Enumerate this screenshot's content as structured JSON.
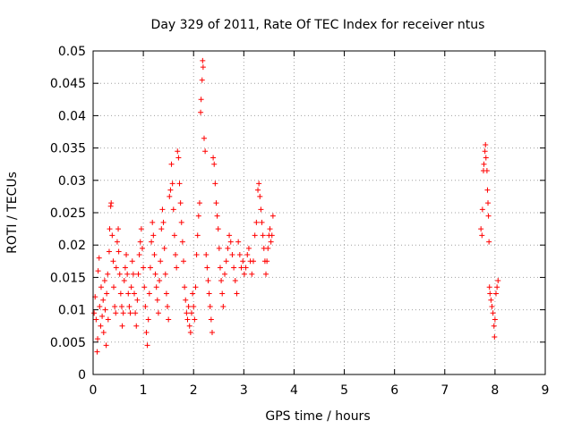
{
  "chart_data": {
    "type": "scatter",
    "title": "Day 329 of 2011, Rate Of TEC Index for receiver ntus",
    "xlabel": "GPS time / hours",
    "ylabel": "ROTI / TECUs",
    "xlim": [
      0,
      9
    ],
    "ylim": [
      0,
      0.05
    ],
    "x_ticks": [
      0,
      1,
      2,
      3,
      4,
      5,
      6,
      7,
      8,
      9
    ],
    "y_ticks": [
      0,
      0.005,
      0.01,
      0.015,
      0.02,
      0.025,
      0.03,
      0.035,
      0.04,
      0.045,
      0.05
    ],
    "x_tick_labels": [
      "0",
      "1",
      "2",
      "3",
      "4",
      "5",
      "6",
      "7",
      "8",
      "9"
    ],
    "y_tick_labels": [
      "0",
      "0.005",
      "0.01",
      "0.015",
      "0.02",
      "0.025",
      "0.03",
      "0.035",
      "0.04",
      "0.045",
      "0.05"
    ],
    "grid": true,
    "legend": "none",
    "marker": "plus",
    "color": "#ff0000",
    "series": [
      {
        "points": [
          [
            0.02,
            0.0095
          ],
          [
            0.04,
            0.012
          ],
          [
            0.06,
            0.0085
          ],
          [
            0.08,
            0.0035
          ],
          [
            0.09,
            0.0055
          ],
          [
            0.1,
            0.016
          ],
          [
            0.12,
            0.018
          ],
          [
            0.13,
            0.0105
          ],
          [
            0.15,
            0.0075
          ],
          [
            0.16,
            0.0135
          ],
          [
            0.18,
            0.009
          ],
          [
            0.2,
            0.0115
          ],
          [
            0.21,
            0.0065
          ],
          [
            0.23,
            0.0145
          ],
          [
            0.24,
            0.01
          ],
          [
            0.26,
            0.0045
          ],
          [
            0.27,
            0.0125
          ],
          [
            0.29,
            0.0155
          ],
          [
            0.3,
            0.0085
          ],
          [
            0.32,
            0.019
          ],
          [
            0.33,
            0.0225
          ],
          [
            0.35,
            0.026
          ],
          [
            0.36,
            0.0265
          ],
          [
            0.38,
            0.0215
          ],
          [
            0.4,
            0.0175
          ],
          [
            0.41,
            0.0135
          ],
          [
            0.43,
            0.0105
          ],
          [
            0.45,
            0.0095
          ],
          [
            0.46,
            0.0165
          ],
          [
            0.48,
            0.0205
          ],
          [
            0.5,
            0.0225
          ],
          [
            0.51,
            0.019
          ],
          [
            0.53,
            0.0155
          ],
          [
            0.55,
            0.0125
          ],
          [
            0.57,
            0.0105
          ],
          [
            0.58,
            0.0075
          ],
          [
            0.6,
            0.0095
          ],
          [
            0.62,
            0.0145
          ],
          [
            0.64,
            0.0165
          ],
          [
            0.66,
            0.0185
          ],
          [
            0.68,
            0.0155
          ],
          [
            0.7,
            0.0125
          ],
          [
            0.72,
            0.0105
          ],
          [
            0.74,
            0.0095
          ],
          [
            0.76,
            0.0135
          ],
          [
            0.78,
            0.0175
          ],
          [
            0.8,
            0.0155
          ],
          [
            0.82,
            0.0125
          ],
          [
            0.84,
            0.0095
          ],
          [
            0.86,
            0.0075
          ],
          [
            0.88,
            0.0115
          ],
          [
            0.9,
            0.0155
          ],
          [
            0.92,
            0.0185
          ],
          [
            0.94,
            0.0205
          ],
          [
            0.96,
            0.0225
          ],
          [
            0.98,
            0.0195
          ],
          [
            1.0,
            0.0165
          ],
          [
            1.02,
            0.0135
          ],
          [
            1.04,
            0.0105
          ],
          [
            1.06,
            0.0065
          ],
          [
            1.08,
            0.0045
          ],
          [
            1.1,
            0.0085
          ],
          [
            1.12,
            0.0125
          ],
          [
            1.14,
            0.0165
          ],
          [
            1.16,
            0.0205
          ],
          [
            1.18,
            0.0235
          ],
          [
            1.2,
            0.0215
          ],
          [
            1.22,
            0.0185
          ],
          [
            1.24,
            0.0155
          ],
          [
            1.26,
            0.0135
          ],
          [
            1.28,
            0.0115
          ],
          [
            1.3,
            0.0095
          ],
          [
            1.32,
            0.0145
          ],
          [
            1.34,
            0.0175
          ],
          [
            1.36,
            0.0225
          ],
          [
            1.38,
            0.0255
          ],
          [
            1.4,
            0.0235
          ],
          [
            1.42,
            0.0195
          ],
          [
            1.44,
            0.0155
          ],
          [
            1.46,
            0.0125
          ],
          [
            1.48,
            0.0105
          ],
          [
            1.5,
            0.0085
          ],
          [
            1.52,
            0.0275
          ],
          [
            1.54,
            0.0285
          ],
          [
            1.56,
            0.0325
          ],
          [
            1.58,
            0.0295
          ],
          [
            1.6,
            0.0255
          ],
          [
            1.62,
            0.0215
          ],
          [
            1.64,
            0.0185
          ],
          [
            1.66,
            0.0165
          ],
          [
            1.68,
            0.0345
          ],
          [
            1.7,
            0.0335
          ],
          [
            1.72,
            0.0295
          ],
          [
            1.74,
            0.0265
          ],
          [
            1.76,
            0.0235
          ],
          [
            1.78,
            0.0205
          ],
          [
            1.8,
            0.0175
          ],
          [
            1.82,
            0.0135
          ],
          [
            1.84,
            0.0115
          ],
          [
            1.86,
            0.0095
          ],
          [
            1.88,
            0.0085
          ],
          [
            1.9,
            0.0105
          ],
          [
            1.92,
            0.0075
          ],
          [
            1.94,
            0.0065
          ],
          [
            1.96,
            0.0095
          ],
          [
            1.98,
            0.0125
          ],
          [
            2.0,
            0.0105
          ],
          [
            2.02,
            0.0085
          ],
          [
            2.04,
            0.0135
          ],
          [
            2.06,
            0.0185
          ],
          [
            2.08,
            0.0215
          ],
          [
            2.1,
            0.0245
          ],
          [
            2.12,
            0.0265
          ],
          [
            2.14,
            0.0405
          ],
          [
            2.15,
            0.0425
          ],
          [
            2.17,
            0.0455
          ],
          [
            2.18,
            0.0485
          ],
          [
            2.19,
            0.0475
          ],
          [
            2.21,
            0.0365
          ],
          [
            2.23,
            0.0345
          ],
          [
            2.25,
            0.0185
          ],
          [
            2.27,
            0.0165
          ],
          [
            2.29,
            0.0145
          ],
          [
            2.31,
            0.0125
          ],
          [
            2.33,
            0.0105
          ],
          [
            2.35,
            0.0085
          ],
          [
            2.37,
            0.0065
          ],
          [
            2.39,
            0.0335
          ],
          [
            2.41,
            0.0325
          ],
          [
            2.43,
            0.0295
          ],
          [
            2.45,
            0.0265
          ],
          [
            2.47,
            0.0245
          ],
          [
            2.49,
            0.0225
          ],
          [
            2.51,
            0.0195
          ],
          [
            2.53,
            0.0165
          ],
          [
            2.55,
            0.0145
          ],
          [
            2.57,
            0.0125
          ],
          [
            2.59,
            0.0105
          ],
          [
            2.62,
            0.0155
          ],
          [
            2.65,
            0.0175
          ],
          [
            2.68,
            0.0195
          ],
          [
            2.71,
            0.0215
          ],
          [
            2.74,
            0.0205
          ],
          [
            2.77,
            0.0185
          ],
          [
            2.8,
            0.0165
          ],
          [
            2.83,
            0.0145
          ],
          [
            2.86,
            0.0125
          ],
          [
            2.89,
            0.0205
          ],
          [
            2.92,
            0.0185
          ],
          [
            2.95,
            0.0165
          ],
          [
            2.98,
            0.0175
          ],
          [
            3.01,
            0.0155
          ],
          [
            3.04,
            0.0165
          ],
          [
            3.07,
            0.0185
          ],
          [
            3.1,
            0.0195
          ],
          [
            3.13,
            0.0175
          ],
          [
            3.16,
            0.0155
          ],
          [
            3.19,
            0.0175
          ],
          [
            3.22,
            0.0215
          ],
          [
            3.25,
            0.0235
          ],
          [
            3.28,
            0.0285
          ],
          [
            3.3,
            0.0295
          ],
          [
            3.32,
            0.0275
          ],
          [
            3.34,
            0.0255
          ],
          [
            3.36,
            0.0235
          ],
          [
            3.38,
            0.0215
          ],
          [
            3.4,
            0.0195
          ],
          [
            3.42,
            0.0175
          ],
          [
            3.44,
            0.0155
          ],
          [
            3.46,
            0.0175
          ],
          [
            3.48,
            0.0195
          ],
          [
            3.5,
            0.0215
          ],
          [
            3.52,
            0.0225
          ],
          [
            3.54,
            0.0205
          ],
          [
            3.56,
            0.0215
          ],
          [
            3.58,
            0.0245
          ],
          [
            7.72,
            0.0225
          ],
          [
            7.74,
            0.0215
          ],
          [
            7.75,
            0.0255
          ],
          [
            7.77,
            0.0315
          ],
          [
            7.78,
            0.0325
          ],
          [
            7.8,
            0.0345
          ],
          [
            7.81,
            0.0355
          ],
          [
            7.82,
            0.0335
          ],
          [
            7.84,
            0.0315
          ],
          [
            7.85,
            0.0285
          ],
          [
            7.86,
            0.0265
          ],
          [
            7.87,
            0.0245
          ],
          [
            7.88,
            0.0205
          ],
          [
            7.89,
            0.0135
          ],
          [
            7.9,
            0.0125
          ],
          [
            7.92,
            0.0115
          ],
          [
            7.94,
            0.0105
          ],
          [
            7.96,
            0.0095
          ],
          [
            7.98,
            0.0075
          ],
          [
            7.99,
            0.0058
          ],
          [
            8.0,
            0.0085
          ],
          [
            8.02,
            0.0125
          ],
          [
            8.04,
            0.0135
          ],
          [
            8.06,
            0.0145
          ]
        ]
      }
    ]
  }
}
